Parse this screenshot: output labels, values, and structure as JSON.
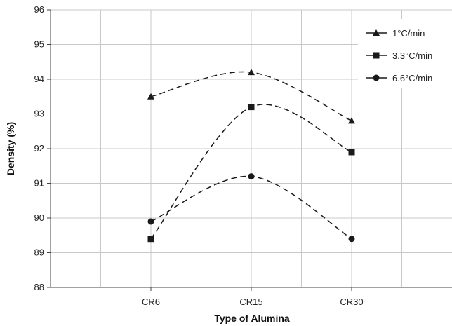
{
  "chart_data": {
    "type": "line",
    "title": "",
    "xlabel": "Type of Alumina",
    "ylabel": "Density (%)",
    "categories": [
      "CR6",
      "CR15",
      "CR30"
    ],
    "ylim": [
      88,
      96
    ],
    "yticks": [
      88,
      89,
      90,
      91,
      92,
      93,
      94,
      95,
      96
    ],
    "grid": true,
    "legend_position": "top-right",
    "series": [
      {
        "name": "1°C/min",
        "marker": "triangle",
        "values": [
          93.5,
          94.2,
          92.8
        ]
      },
      {
        "name": "3.3°C/min",
        "marker": "square",
        "values": [
          89.4,
          93.2,
          91.9
        ]
      },
      {
        "name": "6.6°C/min",
        "marker": "circle",
        "values": [
          89.9,
          91.2,
          89.4
        ]
      }
    ],
    "colors": {
      "line": "#1a1a1a",
      "grid": "#c8c8c8",
      "axis": "#444444"
    }
  }
}
